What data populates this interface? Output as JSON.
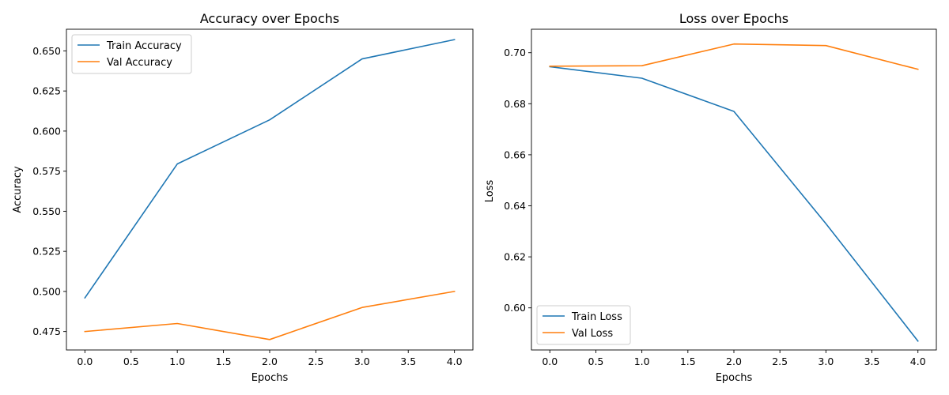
{
  "chart_data": [
    {
      "type": "line",
      "title": "Accuracy over Epochs",
      "xlabel": "Epochs",
      "ylabel": "Accuracy",
      "x": [
        0,
        1,
        2,
        3,
        4
      ],
      "xlim": [
        -0.2,
        4.2
      ],
      "ylim": [
        0.4635,
        0.6635
      ],
      "xticks": [
        0.0,
        0.5,
        1.0,
        1.5,
        2.0,
        2.5,
        3.0,
        3.5,
        4.0
      ],
      "xtick_labels": [
        "0.0",
        "0.5",
        "1.0",
        "1.5",
        "2.0",
        "2.5",
        "3.0",
        "3.5",
        "4.0"
      ],
      "yticks": [
        0.475,
        0.5,
        0.525,
        0.55,
        0.575,
        0.6,
        0.625,
        0.65
      ],
      "ytick_labels": [
        "0.475",
        "0.500",
        "0.525",
        "0.550",
        "0.575",
        "0.600",
        "0.625",
        "0.650"
      ],
      "legend_position": "top-left",
      "grid": false,
      "series": [
        {
          "name": "Train Accuracy",
          "color": "#1f77b4",
          "values": [
            0.496,
            0.5795,
            0.607,
            0.645,
            0.657
          ]
        },
        {
          "name": "Val Accuracy",
          "color": "#ff7f0e",
          "values": [
            0.475,
            0.48,
            0.47,
            0.49,
            0.5
          ]
        }
      ]
    },
    {
      "type": "line",
      "title": "Loss over Epochs",
      "xlabel": "Epochs",
      "ylabel": "Loss",
      "x": [
        0,
        1,
        2,
        3,
        4
      ],
      "xlim": [
        -0.2,
        4.2
      ],
      "ylim": [
        0.5835,
        0.7092
      ],
      "xticks": [
        0.0,
        0.5,
        1.0,
        1.5,
        2.0,
        2.5,
        3.0,
        3.5,
        4.0
      ],
      "xtick_labels": [
        "0.0",
        "0.5",
        "1.0",
        "1.5",
        "2.0",
        "2.5",
        "3.0",
        "3.5",
        "4.0"
      ],
      "yticks": [
        0.6,
        0.62,
        0.64,
        0.66,
        0.68,
        0.7
      ],
      "ytick_labels": [
        "0.60",
        "0.62",
        "0.64",
        "0.66",
        "0.68",
        "0.70"
      ],
      "legend_position": "bottom-left",
      "grid": false,
      "series": [
        {
          "name": "Train Loss",
          "color": "#1f77b4",
          "values": [
            0.6945,
            0.69,
            0.677,
            0.633,
            0.587
          ]
        },
        {
          "name": "Val Loss",
          "color": "#ff7f0e",
          "values": [
            0.6947,
            0.6949,
            0.7034,
            0.7028,
            0.6935
          ]
        }
      ]
    }
  ]
}
